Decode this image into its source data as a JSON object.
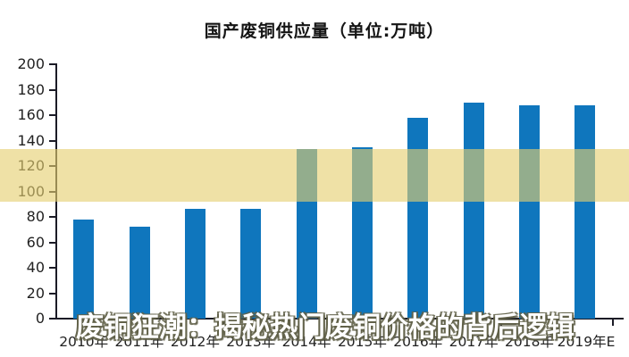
{
  "chart_data": {
    "type": "bar",
    "title": "国产废铜供应量（单位:万吨）",
    "categories": [
      "2010年",
      "2011年",
      "2012年",
      "2013年",
      "2014年",
      "2015年",
      "2016年",
      "2017年",
      "2018年",
      "2019年E"
    ],
    "values": [
      78,
      72,
      86,
      86,
      133,
      135,
      158,
      170,
      168,
      168
    ],
    "xlabel": "",
    "ylabel": "",
    "ylim": [
      0,
      200
    ],
    "yticks": [
      0,
      20,
      40,
      60,
      80,
      100,
      120,
      140,
      160,
      180,
      200
    ],
    "grid": false,
    "legend": null,
    "bar_color": "#0F76BD",
    "axis_color": "#1B1B26",
    "tick_label_color": "#222222"
  },
  "overlay": {
    "headline": "废铜狂潮：揭秘热门废铜价格的背后逻辑",
    "band_color": "rgba(229,206,112,0.62)",
    "text_color": "#FFFFFF",
    "outline_color": "#60604A"
  },
  "page": {
    "background": "#FFFFFF"
  }
}
